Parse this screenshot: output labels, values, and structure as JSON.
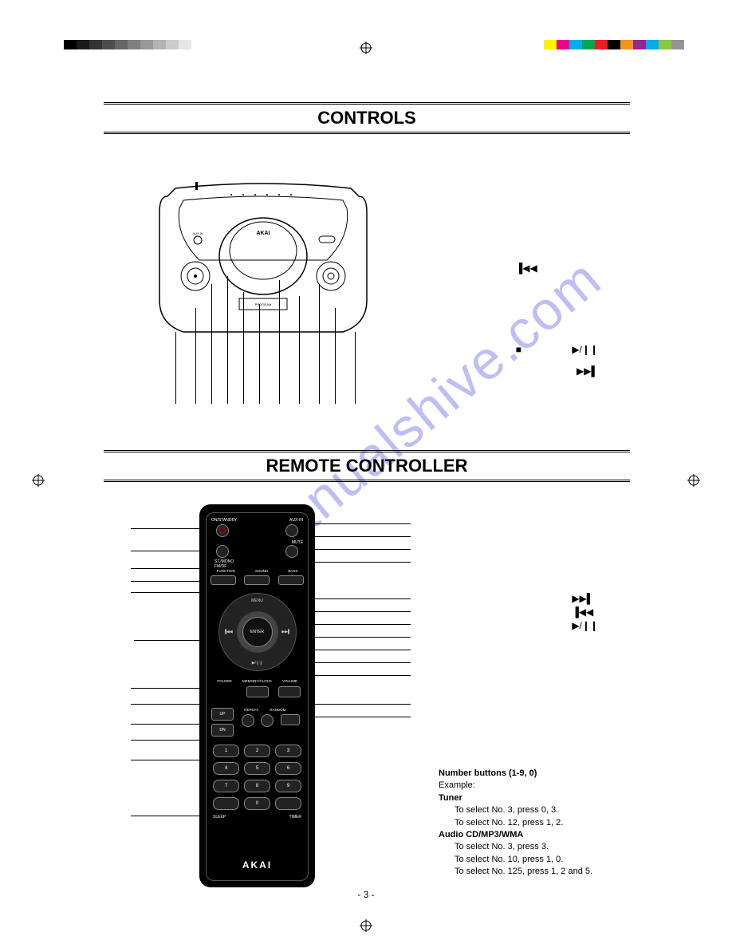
{
  "watermark": "manualshive.com",
  "page_number": "- 3 -",
  "section1_title": "CONTROLS",
  "section2_title": "REMOTE CONTROLLER",
  "device_brand": "AKAI",
  "remote_brand": "AKAI",
  "colorbar_left": [
    "#000000",
    "#1a1a1a",
    "#333333",
    "#4d4d4d",
    "#666666",
    "#808080",
    "#999999",
    "#b3b3b3",
    "#cccccc",
    "#e6e6e6"
  ],
  "colorbar_right": [
    "#fff200",
    "#ec008c",
    "#00aeef",
    "#00a651",
    "#ed1c24",
    "#000000",
    "#f7941d",
    "#92278f",
    "#00adef",
    "#8dc63f",
    "#939598"
  ],
  "controls_symbols": {
    "skip_back": "▐◀◀",
    "stop": "■",
    "play_pause": "▶/❙❙",
    "skip_fwd": "▶▶▌"
  },
  "remote": {
    "labels": {
      "on_standby": "ON/STANDBY",
      "aux_in": "AUX-IN",
      "mute": "MUTE",
      "st_mono": "ST./MONO",
      "fmdf": "FM/DF",
      "function": "FUNCTION",
      "sound": "SOUND",
      "bass": "BASS",
      "menu": "MENU",
      "enter": "ENTER",
      "play_pause": "▶/❙❙",
      "skip_l": "▐◀◀",
      "skip_r": "▶▶▌",
      "folder": "FOLDER",
      "memory_clock": "MEMORY/CLOCK",
      "volume": "VOLUME",
      "up": "UP",
      "dn": "DN",
      "repeat": "REPEAT",
      "random": "RANDOM",
      "plus": "+",
      "minus": "−",
      "sleep": "SLEEP",
      "timer": "TIMER"
    },
    "numbers": [
      "1",
      "2",
      "3",
      "4",
      "5",
      "6",
      "7",
      "8",
      "9",
      "0"
    ]
  },
  "remote_right_icons": {
    "skip_fwd": "▶▶▌",
    "skip_back": "▐◀◀",
    "play_pause": "▶/❙❙"
  },
  "number_buttons": {
    "title": "Number buttons (1-9, 0)",
    "example_label": "Example:",
    "tuner_label": "Tuner",
    "tuner_line1": "To select No. 3, press 0, 3.",
    "tuner_line2": "To select No. 12, press 1, 2.",
    "cd_label": "Audio CD/MP3/WMA",
    "cd_line1": "To select No. 3, press 3.",
    "cd_line2": "To select No. 10, press 1, 0.",
    "cd_line3": "To select No. 125, press 1, 2 and 5."
  }
}
